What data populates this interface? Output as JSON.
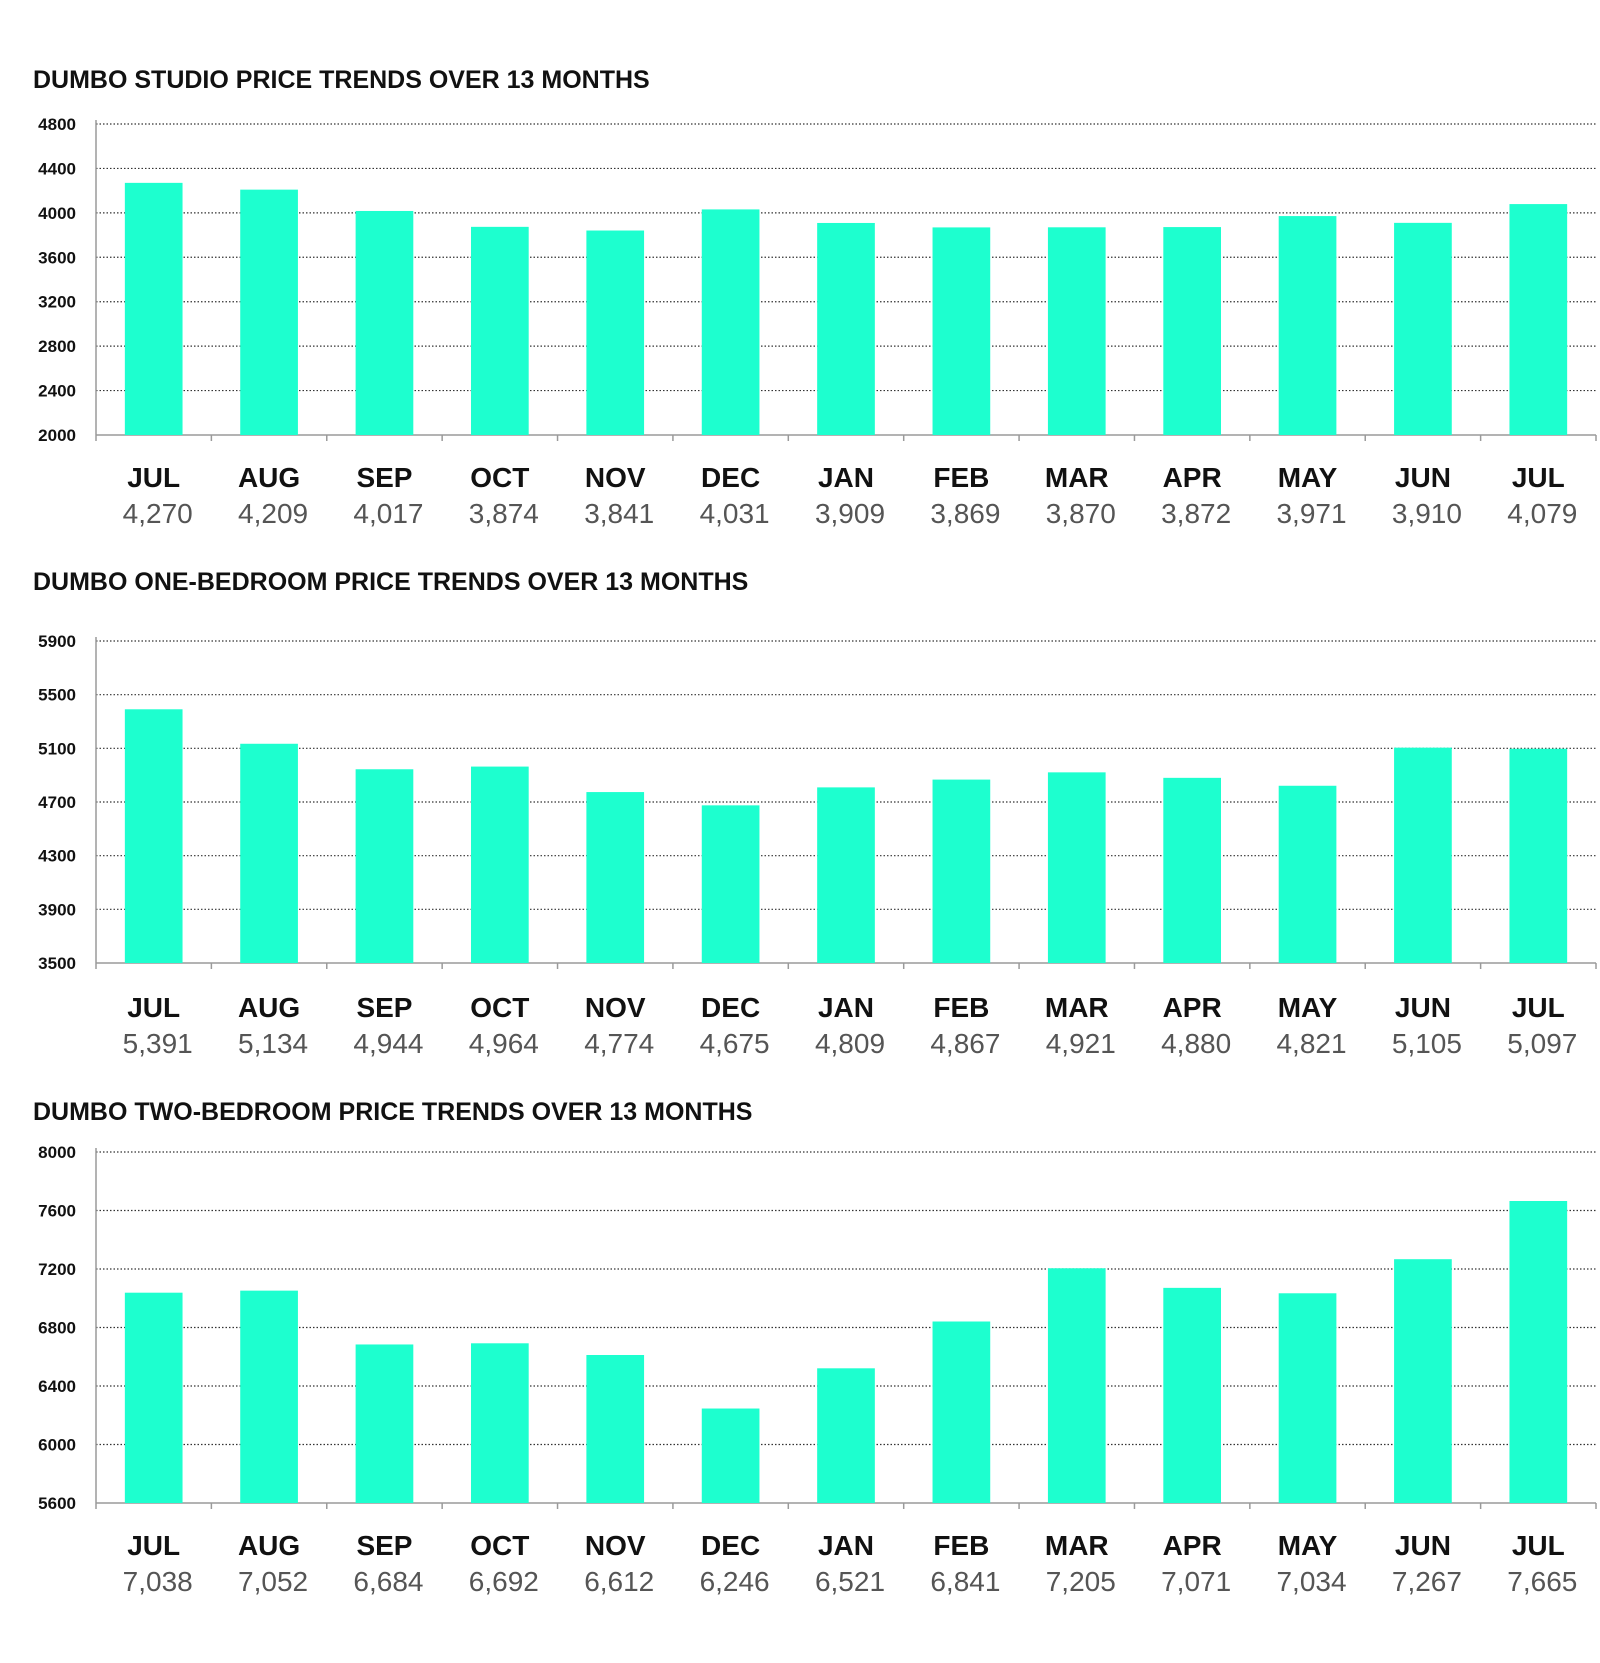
{
  "chart_data": [
    {
      "type": "bar",
      "title": "DUMBO STUDIO PRICE TRENDS OVER 13 MONTHS",
      "categories": [
        "JUL",
        "AUG",
        "SEP",
        "OCT",
        "NOV",
        "DEC",
        "JAN",
        "FEB",
        "MAR",
        "APR",
        "MAY",
        "JUN",
        "JUL"
      ],
      "values": [
        4270,
        4209,
        4017,
        3874,
        3841,
        4031,
        3909,
        3869,
        3870,
        3872,
        3971,
        3910,
        4079
      ],
      "value_labels": [
        "4,270",
        "4,209",
        "4,017",
        "3,874",
        "3,841",
        "4,031",
        "3,909",
        "3,869",
        "3,870",
        "3,872",
        "3,971",
        "3,910",
        "4,079"
      ],
      "ylim": [
        2000,
        4800
      ],
      "yticks": [
        2000,
        2400,
        2800,
        3200,
        3600,
        4000,
        4400,
        4800
      ],
      "xlabel": "",
      "ylabel": "",
      "grid": true,
      "bar_color": "#1DFFCF"
    },
    {
      "type": "bar",
      "title": "DUMBO ONE-BEDROOM PRICE TRENDS OVER 13 MONTHS",
      "categories": [
        "JUL",
        "AUG",
        "SEP",
        "OCT",
        "NOV",
        "DEC",
        "JAN",
        "FEB",
        "MAR",
        "APR",
        "MAY",
        "JUN",
        "JUL"
      ],
      "values": [
        5391,
        5134,
        4944,
        4964,
        4774,
        4675,
        4809,
        4867,
        4921,
        4880,
        4821,
        5105,
        5097
      ],
      "value_labels": [
        "5,391",
        "5,134",
        "4,944",
        "4,964",
        "4,774",
        "4,675",
        "4,809",
        "4,867",
        "4,921",
        "4,880",
        "4,821",
        "5,105",
        "5,097"
      ],
      "ylim": [
        3500,
        5900
      ],
      "yticks": [
        3500,
        3900,
        4300,
        4700,
        5100,
        5500,
        5900
      ],
      "xlabel": "",
      "ylabel": "",
      "grid": true,
      "bar_color": "#1DFFCF"
    },
    {
      "type": "bar",
      "title": "DUMBO TWO-BEDROOM PRICE TRENDS OVER 13 MONTHS",
      "categories": [
        "JUL",
        "AUG",
        "SEP",
        "OCT",
        "NOV",
        "DEC",
        "JAN",
        "FEB",
        "MAR",
        "APR",
        "MAY",
        "JUN",
        "JUL"
      ],
      "values": [
        7038,
        7052,
        6684,
        6692,
        6612,
        6246,
        6521,
        6841,
        7205,
        7071,
        7034,
        7267,
        7665
      ],
      "value_labels": [
        "7,038",
        "7,052",
        "6,684",
        "6,692",
        "6,612",
        "6,246",
        "6,521",
        "6,841",
        "7,205",
        "7,071",
        "7,034",
        "7,267",
        "7,665"
      ],
      "ylim": [
        5600,
        8000
      ],
      "yticks": [
        5600,
        6000,
        6400,
        6800,
        7200,
        7600,
        8000
      ],
      "xlabel": "",
      "ylabel": "",
      "grid": true,
      "bar_color": "#1DFFCF"
    }
  ]
}
